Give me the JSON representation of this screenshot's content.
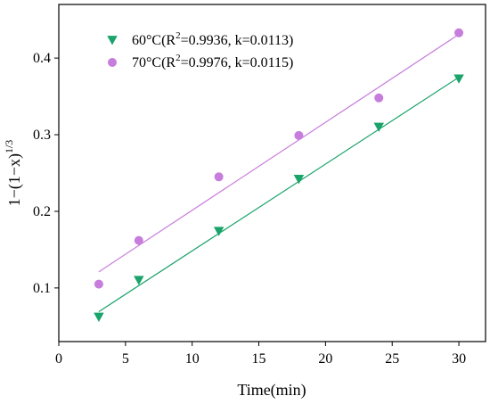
{
  "chart_data": {
    "type": "scatter",
    "xlabel": "Time(min)",
    "ylabel": {
      "base": "1−(1−x)",
      "superscript": "1/3"
    },
    "xlim": [
      0,
      32
    ],
    "ylim": [
      0.03,
      0.47
    ],
    "x_ticks": [
      0,
      5,
      10,
      15,
      20,
      25,
      30
    ],
    "y_ticks": [
      0.1,
      0.2,
      0.3,
      0.4
    ],
    "x_tick_labels": [
      "0",
      "5",
      "10",
      "15",
      "20",
      "25",
      "30"
    ],
    "y_tick_labels": [
      "0.1",
      "0.2",
      "0.3",
      "0.4"
    ],
    "legend_position": "top-left",
    "grid": false,
    "series": [
      {
        "name": "60°C(R2=0.9936, k=0.0113)",
        "legend_parts": {
          "prefix": "60°C(R",
          "sup": "2",
          "suffix": "=0.9936, k=0.0113)"
        },
        "marker": "triangle-down",
        "color": "#1aa36a",
        "x": [
          3,
          6,
          12,
          18,
          24,
          30
        ],
        "y": [
          0.062,
          0.11,
          0.174,
          0.242,
          0.31,
          0.373
        ],
        "fit": {
          "x": [
            3,
            30
          ],
          "y": [
            0.069,
            0.375
          ]
        }
      },
      {
        "name": "70°C(R2=0.9976, k=0.0115)",
        "legend_parts": {
          "prefix": "70°C(R",
          "sup": "2",
          "suffix": "=0.9976, k=0.0115)"
        },
        "marker": "circle",
        "color": "#c77ddc",
        "x": [
          3,
          6,
          12,
          18,
          24,
          30
        ],
        "y": [
          0.105,
          0.162,
          0.245,
          0.299,
          0.348,
          0.433
        ],
        "fit": {
          "x": [
            3,
            30
          ],
          "y": [
            0.121,
            0.431
          ]
        }
      }
    ]
  }
}
